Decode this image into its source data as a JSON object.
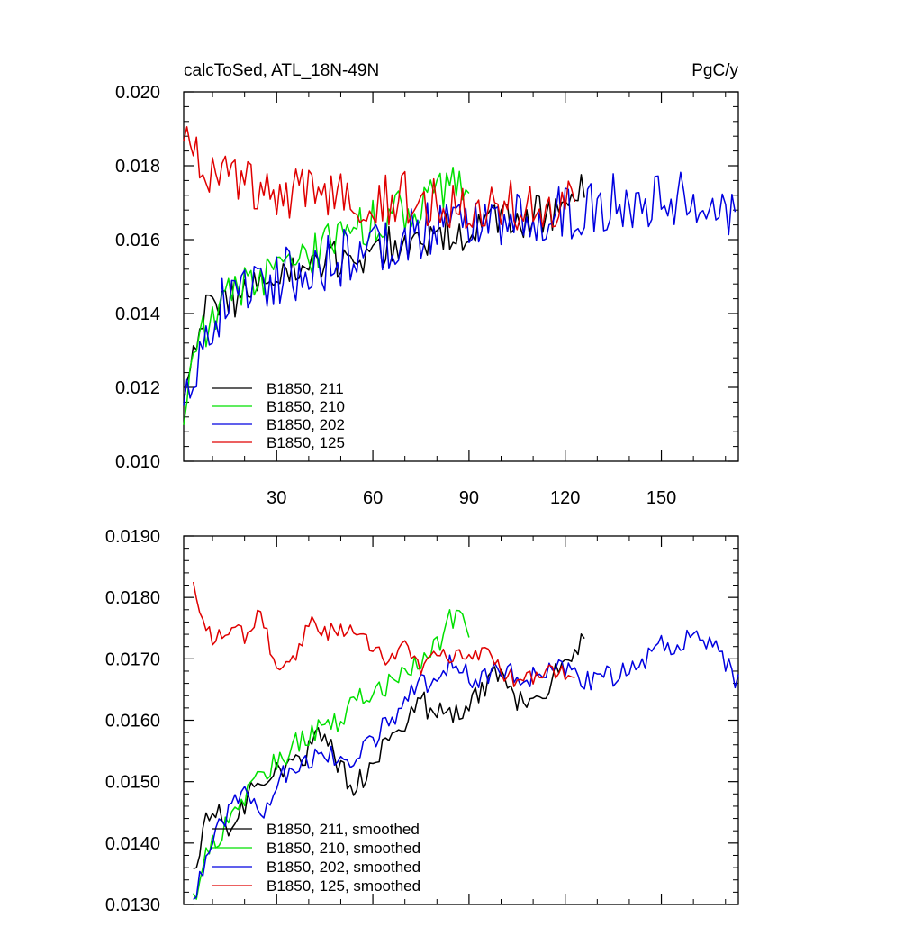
{
  "chart_data": [
    {
      "type": "line",
      "title": "calcToSed, ATL_18N-49N",
      "units": "PgC/y",
      "xlabel": "",
      "ylabel": "",
      "xlim": [
        1,
        174
      ],
      "ylim": [
        0.01,
        0.02
      ],
      "xticks": [
        30,
        60,
        90,
        120,
        150
      ],
      "yticks": [
        0.01,
        0.012,
        0.014,
        0.016,
        0.018,
        0.02
      ],
      "xtick_labels": [
        "30",
        "60",
        "90",
        "120",
        "150"
      ],
      "ytick_labels": [
        "0.010",
        "0.012",
        "0.014",
        "0.016",
        "0.018",
        "0.020"
      ],
      "legend_position": "bottom-left",
      "series": [
        {
          "name": "B1850, 211",
          "label": "B1850, 211",
          "color": "#000000",
          "x_end": 126,
          "knots": [
            [
              1,
              0.0118
            ],
            [
              5,
              0.0136
            ],
            [
              10,
              0.0142
            ],
            [
              20,
              0.0146
            ],
            [
              30,
              0.015
            ],
            [
              45,
              0.0153
            ],
            [
              60,
              0.0157
            ],
            [
              75,
              0.016
            ],
            [
              90,
              0.0163
            ],
            [
              105,
              0.0165
            ],
            [
              115,
              0.0168
            ],
            [
              126,
              0.0172
            ]
          ],
          "noise": 0.0006,
          "seed": 211
        },
        {
          "name": "B1850, 210",
          "label": "B1850, 210",
          "color": "#00e000",
          "x_end": 90,
          "knots": [
            [
              1,
              0.0112
            ],
            [
              4,
              0.013
            ],
            [
              10,
              0.014
            ],
            [
              20,
              0.0148
            ],
            [
              30,
              0.0152
            ],
            [
              45,
              0.0158
            ],
            [
              60,
              0.0165
            ],
            [
              75,
              0.017
            ],
            [
              85,
              0.0175
            ],
            [
              90,
              0.0172
            ]
          ],
          "noise": 0.0006,
          "seed": 210
        },
        {
          "name": "B1850, 202",
          "label": "B1850, 202",
          "color": "#0000e0",
          "x_end": 173,
          "knots": [
            [
              1,
              0.0118
            ],
            [
              5,
              0.0128
            ],
            [
              15,
              0.0146
            ],
            [
              30,
              0.015
            ],
            [
              45,
              0.0153
            ],
            [
              60,
              0.0158
            ],
            [
              80,
              0.0164
            ],
            [
              100,
              0.0166
            ],
            [
              120,
              0.0167
            ],
            [
              140,
              0.0171
            ],
            [
              160,
              0.0172
            ],
            [
              173,
              0.0168
            ]
          ],
          "noise": 0.0008,
          "seed": 202
        },
        {
          "name": "B1850, 125",
          "label": "B1850, 125",
          "color": "#e00000",
          "x_end": 123,
          "knots": [
            [
              1,
              0.019
            ],
            [
              10,
              0.0178
            ],
            [
              20,
              0.0175
            ],
            [
              30,
              0.017
            ],
            [
              45,
              0.0174
            ],
            [
              60,
              0.0172
            ],
            [
              75,
              0.017
            ],
            [
              90,
              0.0171
            ],
            [
              100,
              0.017
            ],
            [
              110,
              0.0167
            ],
            [
              123,
              0.0168
            ]
          ],
          "noise": 0.0008,
          "seed": 125
        }
      ]
    },
    {
      "type": "line",
      "title": "",
      "xlabel": "",
      "ylabel": "",
      "xlim": [
        1,
        174
      ],
      "ylim": [
        0.013,
        0.019
      ],
      "xticks": [
        30,
        60,
        90,
        120,
        150
      ],
      "yticks": [
        0.013,
        0.014,
        0.015,
        0.016,
        0.017,
        0.018,
        0.019
      ],
      "xtick_labels": [],
      "ytick_labels": [
        "0.0130",
        "0.0140",
        "0.0150",
        "0.0160",
        "0.0170",
        "0.0180",
        "0.0190"
      ],
      "legend_position": "bottom-left",
      "series": [
        {
          "name": "B1850, 211, smoothed",
          "label": "B1850, 211, smoothed",
          "color": "#000000",
          "x_end": 126,
          "knots": [
            [
              4,
              0.0135
            ],
            [
              8,
              0.0145
            ],
            [
              12,
              0.0146
            ],
            [
              16,
              0.0142
            ],
            [
              20,
              0.0146
            ],
            [
              25,
              0.0151
            ],
            [
              30,
              0.0152
            ],
            [
              35,
              0.0152
            ],
            [
              40,
              0.0155
            ],
            [
              45,
              0.0158
            ],
            [
              50,
              0.0152
            ],
            [
              55,
              0.0149
            ],
            [
              60,
              0.0154
            ],
            [
              65,
              0.0157
            ],
            [
              70,
              0.0159
            ],
            [
              75,
              0.0163
            ],
            [
              80,
              0.0161
            ],
            [
              85,
              0.0161
            ],
            [
              90,
              0.0163
            ],
            [
              95,
              0.0165
            ],
            [
              100,
              0.0168
            ],
            [
              105,
              0.0163
            ],
            [
              110,
              0.0162
            ],
            [
              115,
              0.0166
            ],
            [
              120,
              0.017
            ],
            [
              126,
              0.0173
            ]
          ],
          "noise": 0.0002,
          "seed": 1211
        },
        {
          "name": "B1850, 210, smoothed",
          "label": "B1850, 210, smoothed",
          "color": "#00e000",
          "x_end": 90,
          "knots": [
            [
              4,
              0.0131
            ],
            [
              8,
              0.0138
            ],
            [
              14,
              0.0143
            ],
            [
              20,
              0.0148
            ],
            [
              26,
              0.0152
            ],
            [
              32,
              0.0154
            ],
            [
              38,
              0.0157
            ],
            [
              44,
              0.0159
            ],
            [
              50,
              0.016
            ],
            [
              55,
              0.0163
            ],
            [
              60,
              0.0165
            ],
            [
              65,
              0.0166
            ],
            [
              70,
              0.0168
            ],
            [
              75,
              0.017
            ],
            [
              80,
              0.0172
            ],
            [
              84,
              0.0176
            ],
            [
              87,
              0.0178
            ],
            [
              90,
              0.0174
            ]
          ],
          "noise": 0.0002,
          "seed": 1210
        },
        {
          "name": "B1850, 202, smoothed",
          "label": "B1850, 202, smoothed",
          "color": "#0000e0",
          "x_end": 174,
          "knots": [
            [
              4,
              0.013
            ],
            [
              8,
              0.0138
            ],
            [
              14,
              0.0144
            ],
            [
              20,
              0.0148
            ],
            [
              26,
              0.0146
            ],
            [
              32,
              0.0151
            ],
            [
              38,
              0.0153
            ],
            [
              44,
              0.0154
            ],
            [
              50,
              0.0155
            ],
            [
              55,
              0.0153
            ],
            [
              60,
              0.0157
            ],
            [
              66,
              0.016
            ],
            [
              72,
              0.0164
            ],
            [
              78,
              0.0167
            ],
            [
              84,
              0.0169
            ],
            [
              90,
              0.0167
            ],
            [
              96,
              0.0167
            ],
            [
              102,
              0.0168
            ],
            [
              108,
              0.0166
            ],
            [
              114,
              0.0168
            ],
            [
              120,
              0.0168
            ],
            [
              126,
              0.0166
            ],
            [
              132,
              0.0167
            ],
            [
              138,
              0.0168
            ],
            [
              144,
              0.017
            ],
            [
              150,
              0.0172
            ],
            [
              156,
              0.0173
            ],
            [
              162,
              0.0173
            ],
            [
              168,
              0.0171
            ],
            [
              174,
              0.0166
            ]
          ],
          "noise": 0.0002,
          "seed": 1202
        },
        {
          "name": "B1850, 125, smoothed",
          "label": "B1850, 125, smoothed",
          "color": "#e00000",
          "x_end": 123,
          "knots": [
            [
              4,
              0.0182
            ],
            [
              7,
              0.0177
            ],
            [
              10,
              0.0173
            ],
            [
              15,
              0.0175
            ],
            [
              20,
              0.0174
            ],
            [
              25,
              0.0177
            ],
            [
              28,
              0.0172
            ],
            [
              31,
              0.0168
            ],
            [
              36,
              0.0171
            ],
            [
              40,
              0.0176
            ],
            [
              45,
              0.0174
            ],
            [
              50,
              0.0175
            ],
            [
              55,
              0.0174
            ],
            [
              60,
              0.0172
            ],
            [
              65,
              0.017
            ],
            [
              70,
              0.0172
            ],
            [
              75,
              0.0168
            ],
            [
              80,
              0.0171
            ],
            [
              85,
              0.017
            ],
            [
              90,
              0.017
            ],
            [
              95,
              0.0172
            ],
            [
              100,
              0.0168
            ],
            [
              105,
              0.0166
            ],
            [
              110,
              0.0167
            ],
            [
              115,
              0.0168
            ],
            [
              120,
              0.0168
            ],
            [
              123,
              0.0167
            ]
          ],
          "noise": 0.00015,
          "seed": 1125
        }
      ]
    }
  ]
}
